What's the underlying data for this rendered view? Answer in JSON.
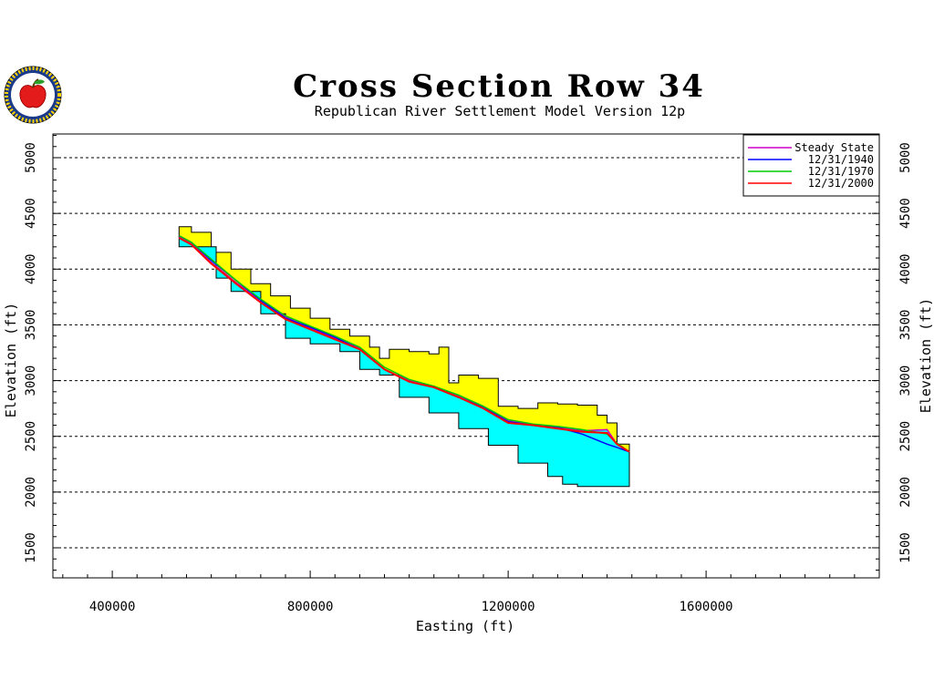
{
  "chart_data": {
    "type": "area",
    "title": "Cross Section Row 34",
    "subtitle": "Republican River Settlement Model Version 12p",
    "xlabel": "Easting (ft)",
    "ylabel": "Elevation (ft)",
    "xlim": [
      280000,
      1950000
    ],
    "ylim": [
      1300000,
      5220
    ],
    "ylim_note": "",
    "x_ticks": [
      400000,
      800000,
      1200000,
      1600000
    ],
    "x_tick_labels": [
      "400000",
      "800000",
      "1200000",
      "1600000"
    ],
    "y_ticks": [
      1500,
      2000,
      2500,
      3000,
      3500,
      4000,
      4500,
      5000
    ],
    "y_tick_labels": [
      "1500",
      "2000",
      "2500",
      "3000",
      "3500",
      "4000",
      "4500",
      "5000"
    ],
    "grid": "horizontal dashed",
    "legend_position": "top-right",
    "colors": {
      "saturated": "#00ffff",
      "unsaturated": "#ffff00",
      "outline": "#000000",
      "steady_state": "#cc00cc",
      "y1940": "#0000ff",
      "y1970": "#00cc00",
      "y2000": "#ff0000"
    },
    "land_surface": {
      "x": [
        535000,
        560000,
        600000,
        640000,
        680000,
        720000,
        760000,
        800000,
        840000,
        880000,
        920000,
        940000,
        960000,
        1000000,
        1040000,
        1060000,
        1080000,
        1100000,
        1140000,
        1180000,
        1220000,
        1260000,
        1300000,
        1340000,
        1380000,
        1400000,
        1420000,
        1445000
      ],
      "y": [
        4380,
        4330,
        4150,
        4000,
        3870,
        3760,
        3650,
        3560,
        3460,
        3400,
        3300,
        3200,
        3280,
        3260,
        3240,
        3300,
        2980,
        3050,
        3020,
        2770,
        2750,
        2800,
        2790,
        2780,
        2690,
        2620,
        2430,
        2360
      ]
    },
    "aquifer_base": {
      "x": [
        535000,
        610000,
        640000,
        700000,
        750000,
        800000,
        860000,
        900000,
        940000,
        980000,
        1040000,
        1100000,
        1160000,
        1220000,
        1280000,
        1310000,
        1340000,
        1380000,
        1420000,
        1445000
      ],
      "y": [
        4200,
        3920,
        3800,
        3600,
        3380,
        3330,
        3260,
        3100,
        3050,
        2850,
        2710,
        2570,
        2420,
        2260,
        2140,
        2070,
        2050,
        2050,
        2050,
        2050
      ]
    },
    "series": [
      {
        "name": "Steady State",
        "x": [
          535000,
          560000,
          600000,
          650000,
          700000,
          750000,
          800000,
          850000,
          900000,
          950000,
          1000000,
          1050000,
          1100000,
          1150000,
          1200000,
          1250000,
          1300000,
          1350000,
          1400000,
          1420000,
          1445000
        ],
        "y": [
          4290,
          4230,
          4060,
          3880,
          3720,
          3570,
          3470,
          3380,
          3290,
          3100,
          3000,
          2950,
          2860,
          2760,
          2640,
          2600,
          2580,
          2550,
          2560,
          2430,
          2360
        ]
      },
      {
        "name": "12/31/1940",
        "x": [
          535000,
          560000,
          600000,
          650000,
          700000,
          750000,
          800000,
          850000,
          900000,
          950000,
          1000000,
          1050000,
          1100000,
          1150000,
          1200000,
          1250000,
          1300000,
          1350000,
          1400000,
          1420000,
          1445000
        ],
        "y": [
          4300,
          4240,
          4080,
          3900,
          3720,
          3560,
          3480,
          3390,
          3280,
          3100,
          2990,
          2940,
          2850,
          2760,
          2630,
          2600,
          2580,
          2520,
          2430,
          2400,
          2360
        ]
      },
      {
        "name": "12/31/1970",
        "x": [
          535000,
          560000,
          600000,
          650000,
          700000,
          750000,
          800000,
          850000,
          900000,
          950000,
          1000000,
          1050000,
          1100000,
          1150000,
          1200000,
          1250000,
          1300000,
          1350000,
          1400000,
          1420000,
          1445000
        ],
        "y": [
          4300,
          4240,
          4090,
          3900,
          3730,
          3580,
          3490,
          3400,
          3300,
          3120,
          3010,
          2950,
          2870,
          2770,
          2650,
          2610,
          2590,
          2560,
          2520,
          2440,
          2360
        ]
      },
      {
        "name": "12/31/2000",
        "x": [
          535000,
          560000,
          600000,
          650000,
          700000,
          750000,
          800000,
          850000,
          900000,
          950000,
          1000000,
          1050000,
          1100000,
          1150000,
          1200000,
          1250000,
          1300000,
          1350000,
          1400000,
          1420000,
          1445000
        ],
        "y": [
          4280,
          4220,
          4050,
          3870,
          3700,
          3550,
          3460,
          3370,
          3280,
          3100,
          2990,
          2940,
          2850,
          2750,
          2620,
          2600,
          2570,
          2540,
          2530,
          2430,
          2360
        ]
      }
    ]
  }
}
